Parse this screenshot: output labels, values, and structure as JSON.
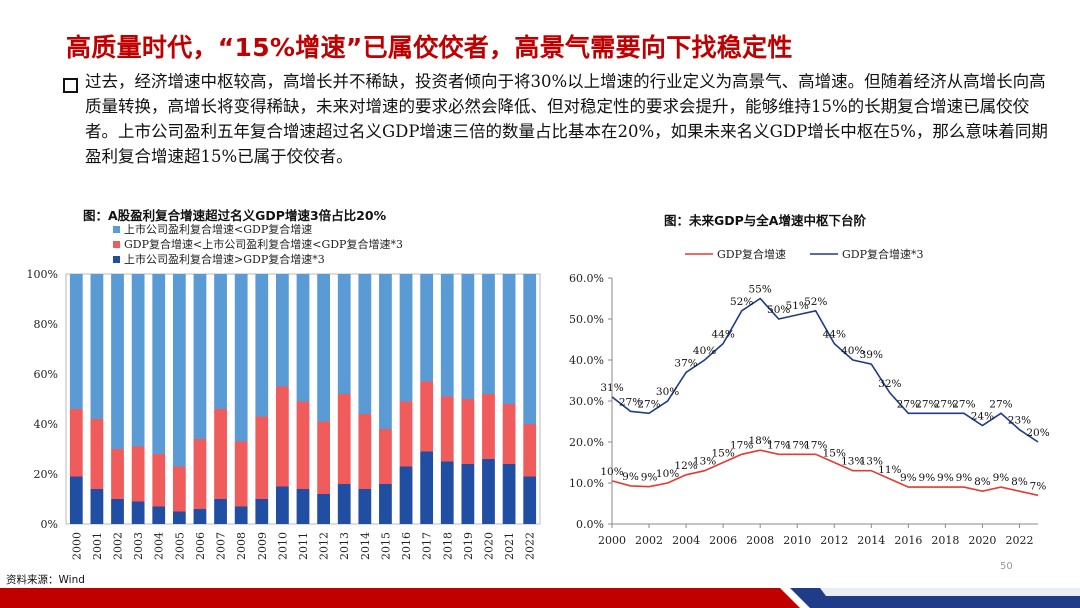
{
  "header": {
    "title": "高质量时代，“15%增速”已属佼佼者，高景气需要向下找稳定性"
  },
  "body": {
    "paragraph": "过去，经济增速中枢较高，高增长并不稀缺，投资者倾向于将30%以上增速的行业定义为高景气、高增速。但随着经济从高增长向高质量转换，高增长将变得稀缺，未来对增速的要求必然会降低、但对稳定性的要求会提升，能够维持15%的长期复合增速已属佼佼者。上市公司盈利五年复合增速超过名义GDP增速三倍的数量占比基本在20%，如果未来名义GDP增长中枢在5%，那么意味着同期盈利复合增速超15%已属于佼佼者。"
  },
  "footer": {
    "source": "资料来源：Wind",
    "page_number": "50"
  },
  "colors": {
    "title_red": "#c00000",
    "light_blue": "#5b9bd5",
    "salmon": "#f05c5c",
    "dark_blue": "#1f4ea3",
    "line_red": "#e03c31",
    "line_navy": "#1f3c88"
  },
  "chart_data": [
    {
      "type": "bar",
      "stacked": true,
      "title": "图：A股盈利复合增速超过名义GDP增速3倍占比20%",
      "categories": [
        "2000",
        "2001",
        "2002",
        "2003",
        "2004",
        "2005",
        "2006",
        "2007",
        "2008",
        "2009",
        "2010",
        "2011",
        "2012",
        "2013",
        "2014",
        "2015",
        "2016",
        "2017",
        "2018",
        "2019",
        "2020",
        "2021",
        "2022"
      ],
      "ylim": [
        0,
        100
      ],
      "yticks": [
        "0%",
        "20%",
        "40%",
        "60%",
        "80%",
        "100%"
      ],
      "legend_position": "top-left",
      "series": [
        {
          "name": "上市公司盈利复合增速>GDP复合增速*3",
          "color": "#1f4ea3",
          "values": [
            19,
            14,
            10,
            9,
            7,
            5,
            6,
            10,
            7,
            10,
            15,
            14,
            12,
            16,
            14,
            16,
            23,
            29,
            25,
            24,
            26,
            24,
            19
          ]
        },
        {
          "name": "GDP复合增速<上市公司盈利复合增速<GDP复合增速*3",
          "color": "#f05c5c",
          "values": [
            27,
            28,
            20,
            22,
            21,
            18,
            28,
            36,
            26,
            33,
            40,
            35,
            29,
            36,
            30,
            22,
            26,
            28,
            26,
            26,
            26,
            24,
            21
          ]
        },
        {
          "name": "上市公司盈利复合增速<GDP复合增速",
          "color": "#5b9bd5",
          "values": [
            54,
            58,
            70,
            69,
            72,
            77,
            66,
            54,
            67,
            57,
            45,
            51,
            59,
            48,
            56,
            62,
            51,
            43,
            49,
            50,
            48,
            52,
            60
          ]
        }
      ],
      "legend_order": [
        2,
        1,
        0
      ]
    },
    {
      "type": "line",
      "title": "图：未来GDP与全A增速中枢下台阶",
      "xlim": [
        2000,
        2023
      ],
      "xticks": [
        "2000",
        "2002",
        "2004",
        "2006",
        "2008",
        "2010",
        "2012",
        "2014",
        "2016",
        "2018",
        "2020",
        "2022"
      ],
      "ylim": [
        0,
        60
      ],
      "yticks": [
        "0.0%",
        "10.0%",
        "20.0%",
        "30.0%",
        "40.0%",
        "50.0%",
        "60.0%"
      ],
      "legend_position": "top",
      "series": [
        {
          "name": "GDP复合增速",
          "color": "#e03c31",
          "x": [
            2000,
            2001,
            2002,
            2003,
            2004,
            2005,
            2006,
            2007,
            2008,
            2009,
            2010,
            2011,
            2012,
            2013,
            2014,
            2015,
            2016,
            2017,
            2018,
            2019,
            2020,
            2021,
            2022,
            2023
          ],
          "values": [
            10.5,
            9.3,
            9.1,
            10.0,
            12.0,
            13.0,
            15.0,
            17.0,
            18.0,
            17.0,
            17.0,
            17.0,
            15.0,
            13.0,
            13.0,
            11.0,
            9.0,
            9.0,
            9.0,
            9.0,
            8.0,
            9.0,
            8.0,
            7.0
          ],
          "labels": [
            "10%",
            "9%",
            "9%",
            "10%",
            "12%",
            "13%",
            "15%",
            "17%",
            "18%",
            "17%",
            "17%",
            "17%",
            "15%",
            "13%",
            "13%",
            "11%",
            "9%",
            "9%",
            "9%",
            "9%",
            "8%",
            "9%",
            "8%",
            "7%"
          ]
        },
        {
          "name": "GDP复合增速*3",
          "color": "#1f3c88",
          "x": [
            2000,
            2001,
            2002,
            2003,
            2004,
            2005,
            2006,
            2007,
            2008,
            2009,
            2010,
            2011,
            2012,
            2013,
            2014,
            2015,
            2016,
            2017,
            2018,
            2019,
            2020,
            2021,
            2022,
            2023
          ],
          "values": [
            31.0,
            27.5,
            27.0,
            30.0,
            37.0,
            40.0,
            44.0,
            52.0,
            55.0,
            50.0,
            51.0,
            52.0,
            44.0,
            40.0,
            39.0,
            32.0,
            27.0,
            27.0,
            27.0,
            27.0,
            24.0,
            27.0,
            23.0,
            20.0
          ],
          "labels": [
            "31%",
            "27%",
            "27%",
            "30%",
            "37%",
            "40%",
            "44%",
            "52%",
            "55%",
            "50%",
            "51%",
            "52%",
            "44%",
            "40%",
            "39%",
            "32%",
            "27%",
            "27%",
            "27%",
            "27%",
            "24%",
            "27%",
            "23%",
            "20%"
          ]
        }
      ]
    }
  ]
}
